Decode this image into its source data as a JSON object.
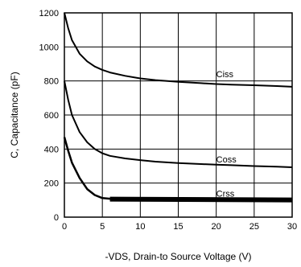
{
  "chart_data": {
    "type": "line",
    "xlabel": "-VDS, Drain-to Source Voltage (V)",
    "ylabel": "C, Capacitance (pF)",
    "xlim": [
      0,
      30
    ],
    "ylim": [
      0,
      1200
    ],
    "x_ticks": [
      "0",
      "5",
      "10",
      "15",
      "20",
      "25",
      "30"
    ],
    "y_ticks": [
      "0",
      "200",
      "400",
      "600",
      "800",
      "1000",
      "1200"
    ],
    "grid": true,
    "series": [
      {
        "name": "Ciss",
        "x": [
          0,
          0.5,
          1,
          2,
          3,
          4,
          5,
          6,
          8,
          10,
          12,
          15,
          18,
          20,
          22,
          25,
          28,
          30
        ],
        "y": [
          1200,
          1110,
          1040,
          960,
          915,
          885,
          865,
          850,
          830,
          815,
          805,
          795,
          787,
          782,
          778,
          775,
          770,
          766
        ]
      },
      {
        "name": "Coss",
        "x": [
          0,
          0.5,
          1,
          2,
          3,
          4,
          5,
          6,
          8,
          10,
          12,
          15,
          18,
          20,
          22,
          25,
          28,
          30
        ],
        "y": [
          800,
          690,
          600,
          500,
          440,
          400,
          375,
          360,
          345,
          335,
          326,
          318,
          312,
          308,
          305,
          300,
          296,
          293
        ]
      },
      {
        "name": "Crss",
        "x": [
          0,
          0.5,
          1,
          2,
          3,
          4,
          5,
          6,
          8,
          10,
          12,
          15,
          18,
          20,
          22,
          25,
          28,
          30
        ],
        "y": [
          470,
          390,
          320,
          230,
          165,
          130,
          112,
          108,
          106,
          105,
          104,
          104,
          103,
          103,
          102,
          102,
          101,
          101
        ]
      }
    ]
  }
}
